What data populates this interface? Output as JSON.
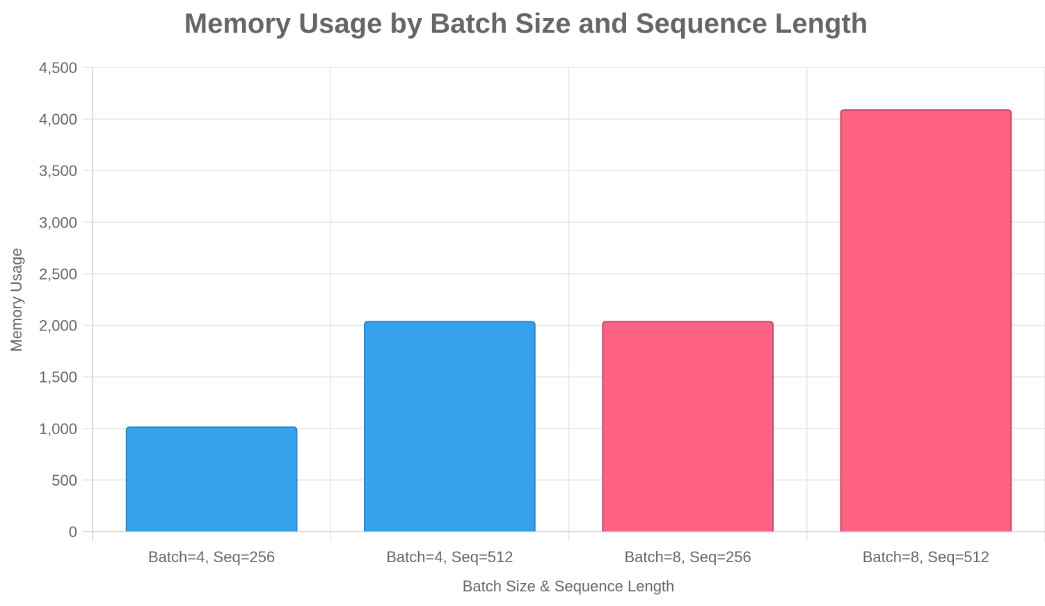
{
  "chart_data": {
    "type": "bar",
    "title": "Memory Usage by Batch Size and Sequence Length",
    "xlabel": "Batch Size & Sequence Length",
    "ylabel": "Memory Usage",
    "categories": [
      "Batch=4, Seq=256",
      "Batch=4, Seq=512",
      "Batch=8, Seq=256",
      "Batch=8, Seq=512"
    ],
    "values": [
      1012,
      2036,
      2036,
      4088
    ],
    "bar_fill_colors": [
      "#36a2eb",
      "#36a2eb",
      "#ff6384",
      "#ff6384"
    ],
    "bar_border_colors": [
      "#2a85c4",
      "#2a85c4",
      "#c24a68",
      "#c24a68"
    ],
    "ylim": [
      0,
      4500
    ],
    "yticks": [
      0,
      500,
      1000,
      1500,
      2000,
      2500,
      3000,
      3500,
      4000,
      4500
    ],
    "ytick_labels": [
      "0",
      "500",
      "1,000",
      "1,500",
      "2,000",
      "2,500",
      "3,000",
      "3,500",
      "4,000",
      "4,500"
    ],
    "grid": true,
    "legend": "none"
  }
}
